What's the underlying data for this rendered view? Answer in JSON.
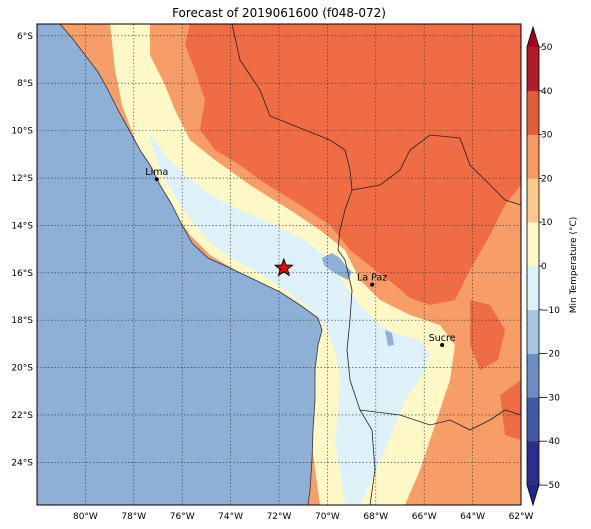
{
  "title": "Forecast of 2019061600 (f048-072)",
  "map": {
    "lon_range": [
      -82,
      -62
    ],
    "lat_range": [
      -25.8,
      -5.5
    ],
    "grid": "dotted",
    "lon_ticks": [
      {
        "value": -80,
        "label": "80°W"
      },
      {
        "value": -78,
        "label": "78°W"
      },
      {
        "value": -76,
        "label": "76°W"
      },
      {
        "value": -74,
        "label": "74°W"
      },
      {
        "value": -72,
        "label": "72°W"
      },
      {
        "value": -70,
        "label": "70°W"
      },
      {
        "value": -68,
        "label": "68°W"
      },
      {
        "value": -66,
        "label": "66°W"
      },
      {
        "value": -64,
        "label": "64°W"
      },
      {
        "value": -62,
        "label": "62°W"
      }
    ],
    "lat_ticks": [
      {
        "value": -6,
        "label": "6°S"
      },
      {
        "value": -8,
        "label": "8°S"
      },
      {
        "value": -10,
        "label": "10°S"
      },
      {
        "value": -12,
        "label": "12°S"
      },
      {
        "value": -14,
        "label": "14°S"
      },
      {
        "value": -16,
        "label": "16°S"
      },
      {
        "value": -18,
        "label": "18°S"
      },
      {
        "value": -20,
        "label": "20°S"
      },
      {
        "value": -22,
        "label": "22°S"
      },
      {
        "value": -24,
        "label": "24°S"
      }
    ],
    "cities": [
      {
        "name": "Lima",
        "lon": -77.05,
        "lat": -12.05
      },
      {
        "name": "La Paz",
        "lon": -68.15,
        "lat": -16.5
      },
      {
        "name": "Sucre",
        "lon": -65.26,
        "lat": -19.05
      }
    ],
    "marker": {
      "symbol": "red-star",
      "lon": -71.8,
      "lat": -15.8
    }
  },
  "colorbar": {
    "label": "Min Temperature (°C)",
    "levels": [
      -50,
      -40,
      -30,
      -20,
      -10,
      0,
      10,
      20,
      30,
      40,
      50
    ],
    "tick_labels": [
      "−50",
      "−40",
      "−30",
      "−20",
      "−10",
      "0",
      "10",
      "20",
      "30",
      "40",
      "50"
    ],
    "colors": [
      "#2c2d8c",
      "#4159a8",
      "#6a8fc3",
      "#a3c7e0",
      "#ddf1f8",
      "#fef8c7",
      "#fdc98a",
      "#f79a61",
      "#e05e3a",
      "#b11c26"
    ],
    "extend_low_color": "#262686",
    "extend_high_color": "#a50026"
  },
  "colors": {
    "ocean": "#8fb0d6",
    "coast": "#fcc58c",
    "cool": "#fef8c7",
    "cold": "#dff1f8",
    "warm": "#f79d67",
    "hot": "#f06c45",
    "lake": "#8fb0d6",
    "marker": "#e8000b"
  }
}
